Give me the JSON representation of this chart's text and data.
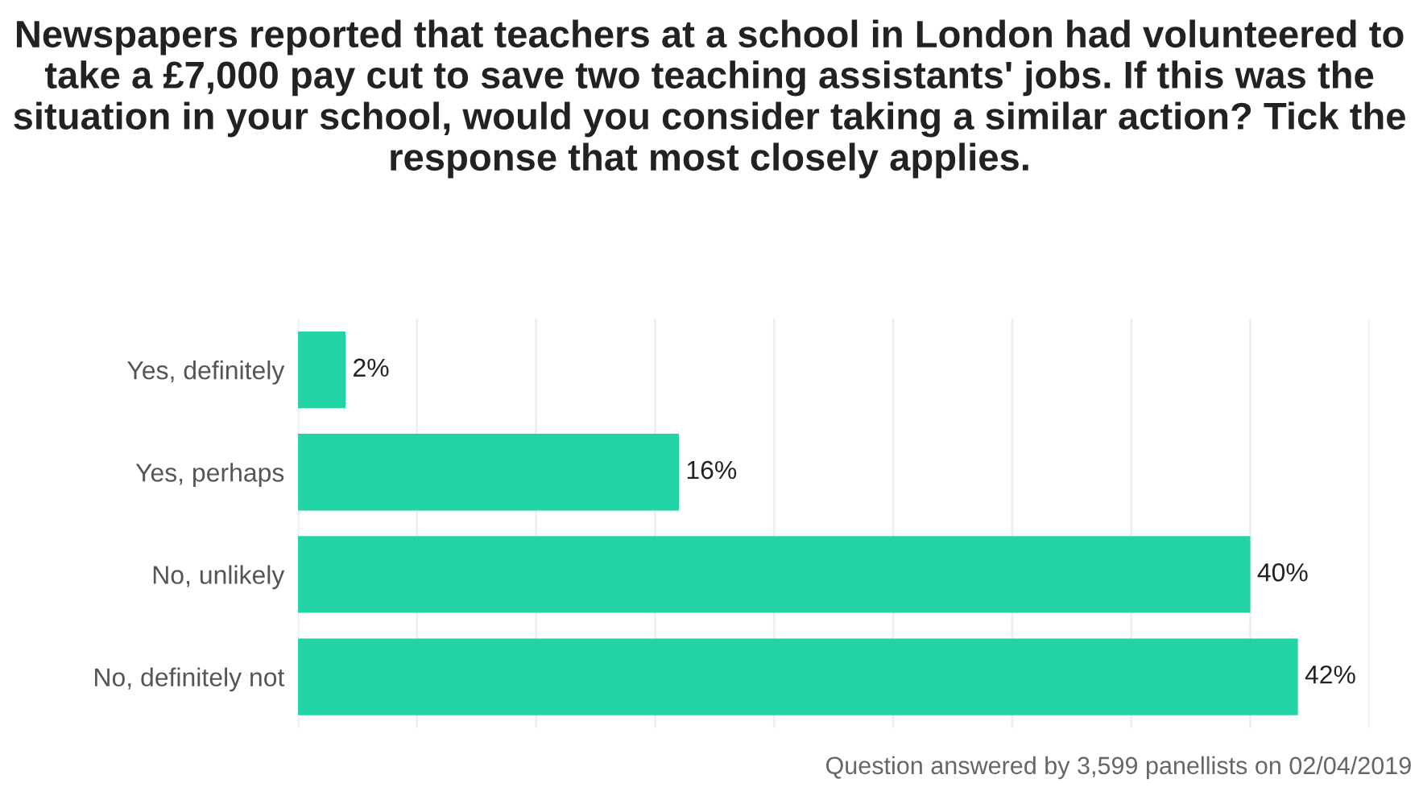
{
  "chart_data": {
    "type": "bar",
    "orientation": "horizontal",
    "title": "Newspapers reported that teachers at a school in London had volunteered to take a £7,000 pay cut to save two teaching assistants' jobs. If this was the situation in your school, would you consider taking a similar action? Tick the response that most closely applies.",
    "categories": [
      "Yes, definitely",
      "Yes, perhaps",
      "No, unlikely",
      "No, definitely not"
    ],
    "values": [
      2,
      16,
      40,
      42
    ],
    "value_labels": [
      "2%",
      "16%",
      "40%",
      "42%"
    ],
    "color": "#22d3a6",
    "xlim": [
      0,
      45
    ],
    "xticks": [
      {
        "value": 0,
        "label": null
      },
      {
        "value": 5,
        "label": null
      },
      {
        "value": 10,
        "label": null
      },
      {
        "value": 15,
        "label": null
      },
      {
        "value": 20,
        "label": null
      },
      {
        "value": 25,
        "label": null
      },
      {
        "value": 30,
        "label": null
      },
      {
        "value": 35,
        "label": null
      },
      {
        "value": 40,
        "label": null
      },
      {
        "value": 45,
        "label": null
      }
    ],
    "tick_labels": "y",
    "grid": "x",
    "annotations": [
      "Question answered by 3,599 panellists on 02/04/2019"
    ]
  }
}
